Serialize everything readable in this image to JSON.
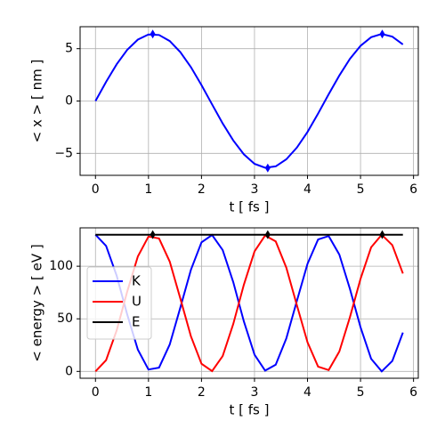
{
  "chart_data": [
    {
      "type": "line",
      "xlabel": "t  [ fs ]",
      "ylabel": "< x >  [ nm ]",
      "x": [
        0,
        0.2,
        0.4,
        0.6,
        0.8,
        1.0,
        1.2,
        1.4,
        1.6,
        1.8,
        2.0,
        2.2,
        2.4,
        2.6,
        2.8,
        3.0,
        3.2,
        3.4,
        3.6,
        3.8,
        4.0,
        4.2,
        4.4,
        4.6,
        4.8,
        5.0,
        5.2,
        5.4,
        5.6,
        5.8
      ],
      "series": [
        {
          "color": "#0000ff",
          "values": [
            0,
            1.83,
            3.51,
            4.9,
            5.87,
            6.36,
            6.31,
            5.73,
            4.68,
            3.24,
            1.52,
            -0.32,
            -2.14,
            -3.77,
            -5.09,
            -6.0,
            -6.38,
            -6.24,
            -5.57,
            -4.45,
            -2.96,
            -1.2,
            0.65,
            2.44,
            4.03,
            5.27,
            6.1,
            6.4,
            6.15,
            5.41
          ]
        }
      ],
      "points": {
        "color": "#0000ff",
        "x": [
          1.08,
          3.25,
          5.41
        ],
        "values": [
          6.4,
          -6.4,
          6.4
        ]
      },
      "xlim": [
        -0.29,
        6.09
      ],
      "xticks": [
        0,
        1,
        2,
        3,
        4,
        5,
        6
      ],
      "ylim": [
        -7.1,
        7.1
      ],
      "yticks": [
        {
          "value": -5,
          "label": "−5"
        },
        0,
        5
      ],
      "grid": true
    },
    {
      "type": "line",
      "xlabel": "t  [ fs ]",
      "ylabel": "< energy >   [ eV ]",
      "x": [
        0,
        0.2,
        0.4,
        0.6,
        0.8,
        1.0,
        1.2,
        1.4,
        1.6,
        1.8,
        2.0,
        2.2,
        2.4,
        2.6,
        2.8,
        3.0,
        3.2,
        3.4,
        3.6,
        3.8,
        4.0,
        4.2,
        4.4,
        4.6,
        4.8,
        5.0,
        5.2,
        5.4,
        5.6,
        5.8
      ],
      "series": [
        {
          "name": "K",
          "color": "#0000ff",
          "values": [
            130,
            119.3,
            91,
            53.9,
            20.7,
            1.8,
            3.6,
            25.6,
            60.6,
            96.6,
            122.7,
            129.7,
            115.4,
            84.9,
            47.6,
            15.9,
            0.8,
            6.4,
            31.3,
            67.1,
            102.2,
            125.4,
            128.7,
            111,
            78.4,
            42,
            12,
            0,
            9.9,
            36.9
          ]
        },
        {
          "name": "U",
          "color": "#ff0000",
          "values": [
            0,
            10.7,
            39,
            76.1,
            109.3,
            128.2,
            126.4,
            104.4,
            69.4,
            33.4,
            7.3,
            0.3,
            14.6,
            45.1,
            82.4,
            114.1,
            129.2,
            123.6,
            98.7,
            62.9,
            27.8,
            4.6,
            1.3,
            19,
            51.6,
            88,
            118,
            130,
            120.1,
            93.1
          ]
        },
        {
          "name": "E",
          "color": "#000000",
          "values": [
            130,
            130,
            130,
            130,
            130,
            130,
            130,
            130,
            130,
            130,
            130,
            130,
            130,
            130,
            130,
            130,
            130,
            130,
            130,
            130,
            130,
            130,
            130,
            130,
            130,
            130,
            130,
            130,
            130,
            130
          ]
        }
      ],
      "points": {
        "color": "#000000",
        "x": [
          1.08,
          3.25,
          5.41
        ],
        "values": [
          130,
          130,
          130
        ]
      },
      "xlim": [
        -0.29,
        6.09
      ],
      "xticks": [
        0,
        1,
        2,
        3,
        4,
        5,
        6
      ],
      "ylim": [
        -6.5,
        136.5
      ],
      "yticks": [
        0,
        50,
        100
      ],
      "grid": true,
      "legend": "center left"
    }
  ]
}
